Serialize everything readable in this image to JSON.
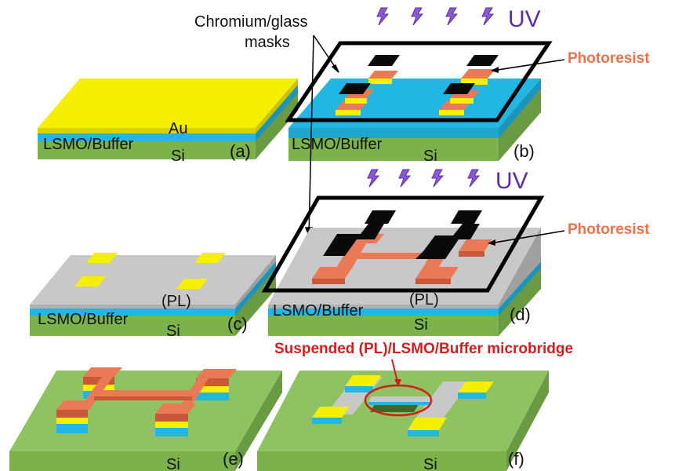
{
  "labels": {
    "chromium_masks_line1": "Chromium/glass",
    "chromium_masks_line2": "masks",
    "uv": "UV",
    "photoresist": "Photoresist",
    "lsmo_buffer": "LSMO/Buffer",
    "au": "Au",
    "si": "Si",
    "pl": "(PL)",
    "suspended": "Suspended (PL)/LSMO/Buffer microbridge"
  },
  "panels": {
    "a": "(a)",
    "b": "(b)",
    "c": "(c)",
    "d": "(d)",
    "e": "(e)",
    "f": "(f)"
  },
  "colors": {
    "si_top": "#8fc260",
    "si_side": "#6a9a42",
    "buffer": "#22b7e3",
    "gold": "#f4f000",
    "gold_side": "#c9c400",
    "platinum": "#c8c8c8",
    "photoresist": "#ea7a55",
    "photoresist_side": "#c8583a",
    "mask_dark": "#0a0a0a",
    "uv_purple": "#7a4ac8",
    "red_annotation": "#d21e1e"
  }
}
